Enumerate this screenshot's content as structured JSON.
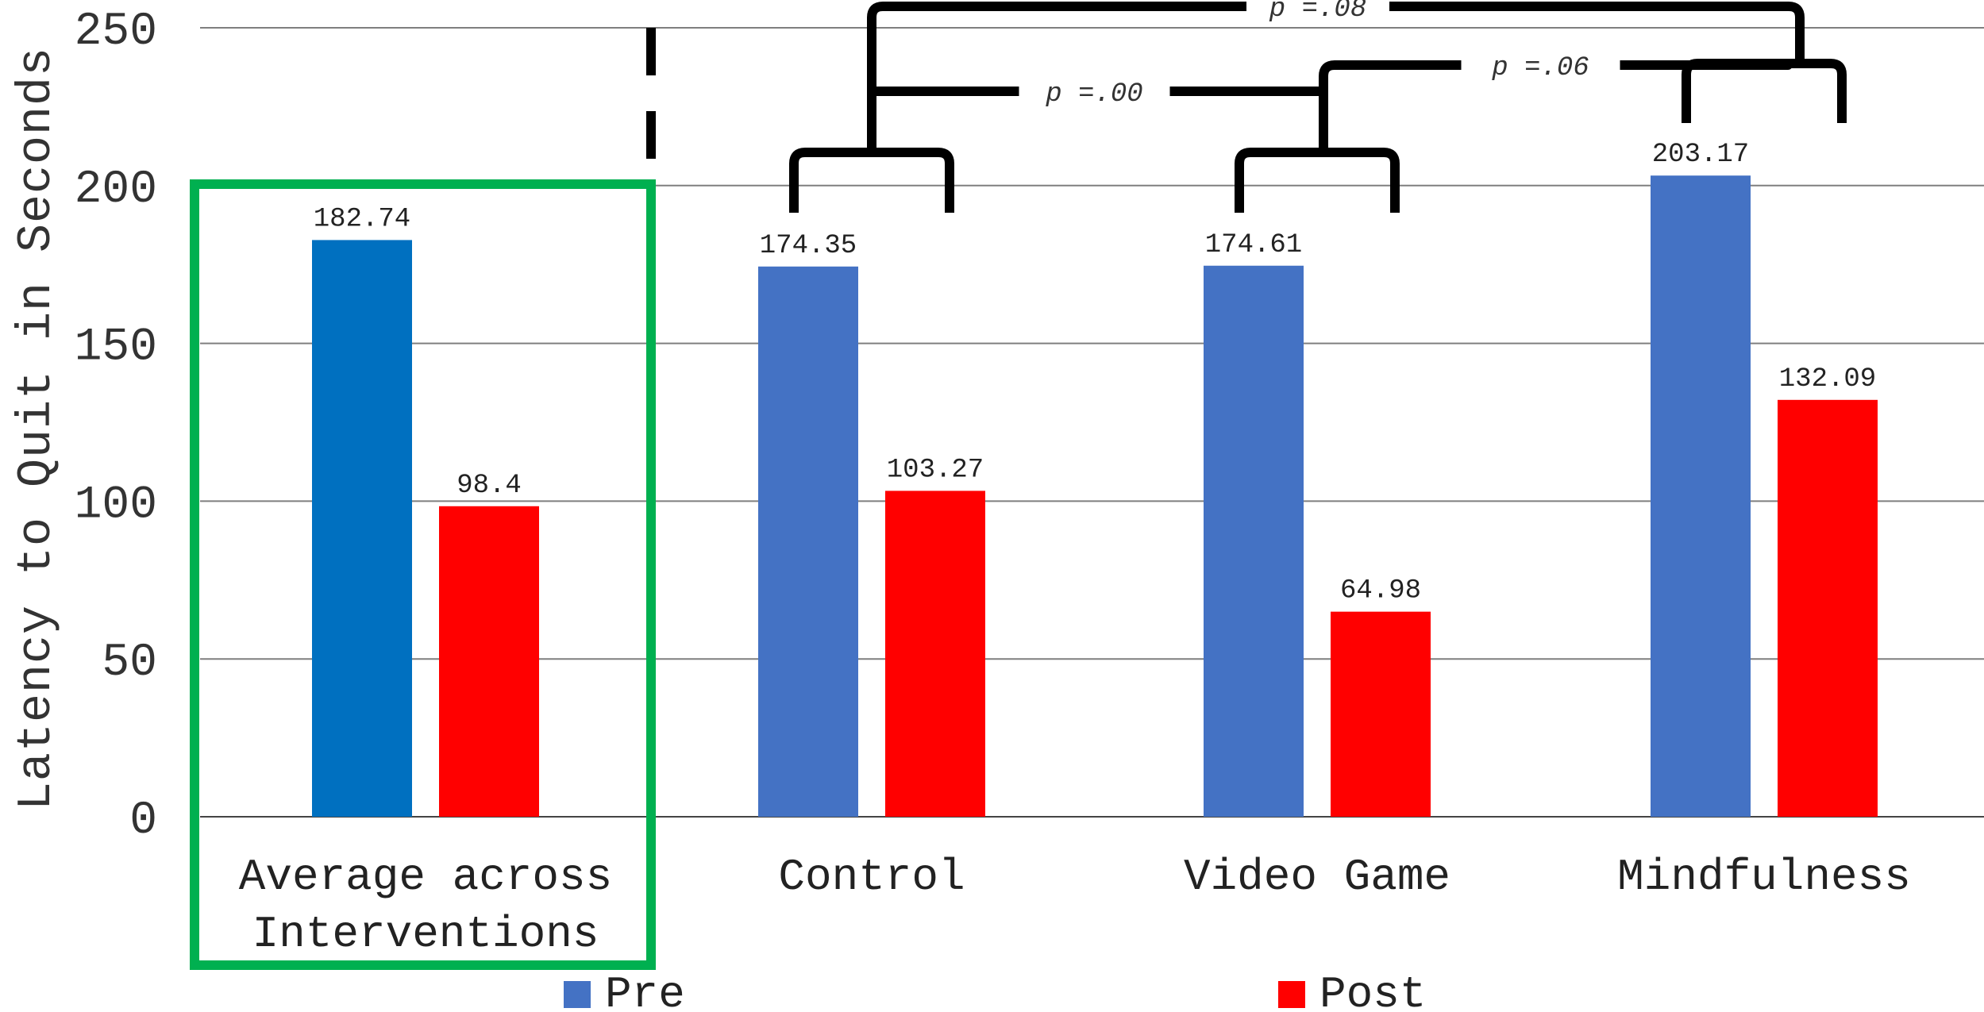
{
  "chart_data": {
    "type": "bar",
    "ylabel": "Latency to Quit in Seconds",
    "ylim": [
      0,
      250
    ],
    "yticks": [
      "0",
      "50",
      "100",
      "150",
      "200",
      "250"
    ],
    "grid": true,
    "legend_position": "bottom",
    "categories": [
      [
        "Average across",
        "Interventions"
      ],
      [
        "Control"
      ],
      [
        "Video Game"
      ],
      [
        "Mindfulness"
      ]
    ],
    "series": [
      {
        "name": "Pre",
        "values": [
          182.74,
          174.35,
          174.61,
          203.17
        ],
        "labels": [
          "182.74",
          "174.35",
          "174.61",
          "203.17"
        ],
        "color": "#4472C4",
        "highlight_color": "#0070C0"
      },
      {
        "name": "Post",
        "values": [
          98.4,
          103.27,
          64.98,
          132.09
        ],
        "labels": [
          "98.4",
          "103.27",
          "64.98",
          "132.09"
        ],
        "color": "#FF0000"
      }
    ],
    "highlight_box": {
      "category_index": 0,
      "color": "#00B050"
    },
    "significance": [
      {
        "label": "p =.00",
        "from": "Control",
        "to": "Video Game"
      },
      {
        "label": "p =.06",
        "from": "Video Game",
        "to": "Mindfulness"
      },
      {
        "label": "p =.08",
        "from": "Control",
        "to": "Mindfulness"
      }
    ]
  }
}
